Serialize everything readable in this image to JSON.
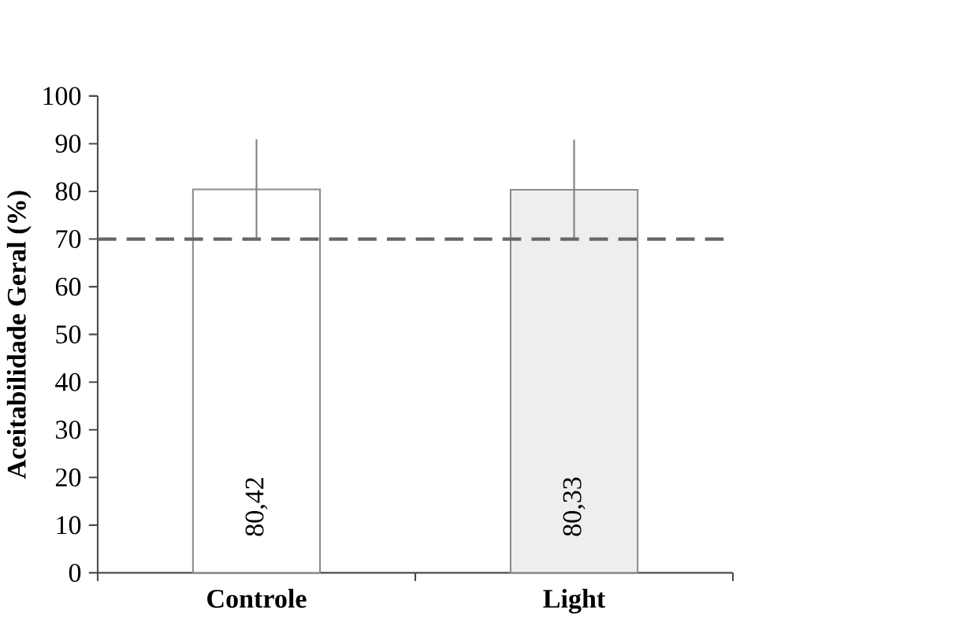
{
  "chart_data": {
    "type": "bar",
    "ylabel": "Aceitabilidade Geral (%)",
    "categories": [
      "Controle",
      "Light"
    ],
    "values": [
      80.42,
      80.33
    ],
    "colors": [
      "#ffffff",
      "#eeeeee"
    ],
    "errors": [
      10.5,
      10.5
    ],
    "value_labels": [
      "80,42",
      "80,33"
    ],
    "ylim": [
      0,
      100
    ],
    "yticks": [
      0,
      10,
      20,
      30,
      40,
      50,
      60,
      70,
      80,
      90,
      100
    ],
    "ref_lines": [
      {
        "axis": "y",
        "value": 70,
        "color": "#666666",
        "line_style": "dashed"
      }
    ],
    "grid": false
  }
}
